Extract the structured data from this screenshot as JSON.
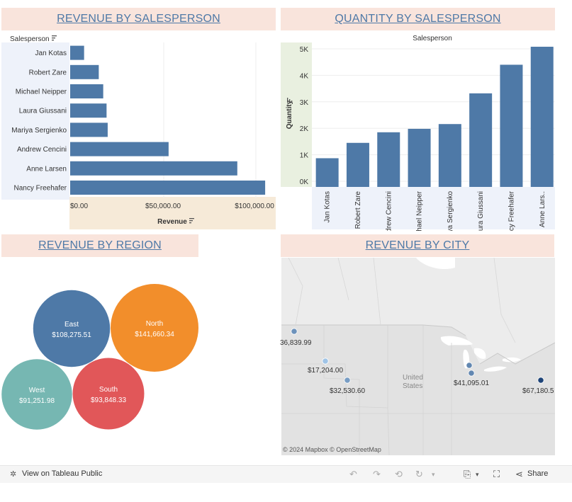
{
  "titles": {
    "revenue_by_salesperson": "REVENUE BY SALESPERSON",
    "quantity_by_salesperson": "QUANTITY BY SALESPERSON",
    "revenue_by_region": "REVENUE BY REGION",
    "revenue_by_city": "REVENUE BY CITY"
  },
  "chart_data": [
    {
      "type": "bar",
      "orientation": "horizontal",
      "title": "REVENUE BY SALESPERSON",
      "ylabel": "Salesperson",
      "xlabel": "Revenue",
      "categories": [
        "Jan Kotas",
        "Robert Zare",
        "Michael Neipper",
        "Laura Giussani",
        "Mariya Sergienko",
        "Andrew Cencini",
        "Anne Larsen",
        "Nancy Freehafer"
      ],
      "values": [
        7500,
        15400,
        17800,
        19600,
        20200,
        53000,
        90000,
        105000
      ],
      "xlim": [
        0,
        106000
      ],
      "xticks": [
        "$0.00",
        "$50,000.00",
        "$100,000.00"
      ],
      "color": "#4e79a7"
    },
    {
      "type": "bar",
      "orientation": "vertical",
      "title": "QUANTITY BY SALESPERSON",
      "xlabel": "Salesperson",
      "ylabel": "Quantity",
      "categories": [
        "Jan Kotas",
        "Robert Zare",
        "Andrew Cencini",
        "Michael Neipper",
        "Mariya Sergienko",
        "Laura Giussani",
        "Nancy Freehafer",
        "Anne Lars.."
      ],
      "values": [
        870,
        1450,
        1850,
        1980,
        2160,
        3320,
        4400,
        5080
      ],
      "ylim": [
        0,
        5200
      ],
      "yticks": [
        "0K",
        "1K",
        "2K",
        "3K",
        "4K",
        "5K"
      ],
      "color": "#4e79a7"
    },
    {
      "type": "bubble",
      "title": "REVENUE BY REGION",
      "categories": [
        "East",
        "North",
        "West",
        "South"
      ],
      "labels": [
        "$108,275.51",
        "$141,660.34",
        "$91,251.98",
        "$93,848.33"
      ],
      "values": [
        108275.51,
        141660.34,
        91251.98,
        93848.33
      ],
      "colors": [
        "#4e79a7",
        "#f28e2b",
        "#76b7b2",
        "#e15759"
      ]
    },
    {
      "type": "map",
      "title": "REVENUE BY CITY",
      "labels": [
        "36,839.99",
        "$17,204.00",
        "$32,530.60",
        "$41,095.01",
        "$67,180.5"
      ],
      "values": [
        36839.99,
        17204.0,
        32530.6,
        41095.01,
        67180.5
      ],
      "country_label": "United States",
      "credit": "© 2024 Mapbox © OpenStreetMap"
    }
  ],
  "toolbar": {
    "view_label": "View on Tableau Public",
    "share_label": "Share"
  }
}
